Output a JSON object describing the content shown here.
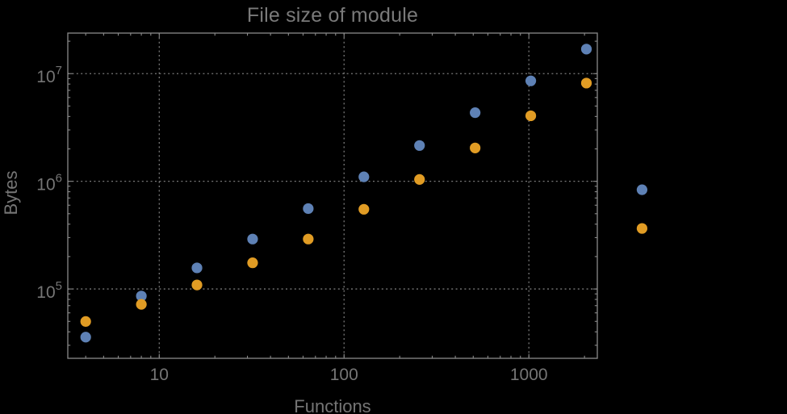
{
  "figure": {
    "background_color": "#000000",
    "title_color": "#7a7a7a",
    "text_color": "#757575",
    "frame_color": "#8a8a8a",
    "grid_color": "#868686"
  },
  "chart_data": {
    "type": "scatter",
    "title": "File size of module",
    "xlabel": "Functions",
    "ylabel": "Bytes",
    "x_scale": "log",
    "y_scale": "log",
    "grid": "dotted lines at decade ticks, frame on all four sides with mirrored inward ticks",
    "legend": "none",
    "plot_range_clipping": false,
    "x_range": [
      3.2,
      2346
    ],
    "y_range": [
      22700,
      23800000
    ],
    "x_ticks": [
      10,
      100,
      1000
    ],
    "x_tick_labels": [
      "10",
      "100",
      "1000"
    ],
    "y_ticks": [
      100000,
      1000000,
      10000000
    ],
    "y_tick_labels": [
      {
        "base": "10",
        "exp": "5"
      },
      {
        "base": "10",
        "exp": "6"
      },
      {
        "base": "10",
        "exp": "7"
      }
    ],
    "x": [
      4,
      8,
      16,
      32,
      64,
      128,
      256,
      512,
      1024,
      2048,
      4096
    ],
    "series": [
      {
        "name": "blue",
        "color": "#5E81B5",
        "values": [
          35700,
          86000,
          157000,
          291000,
          558000,
          1100000,
          2150000,
          4340000,
          8570000,
          16900000,
          835000
        ]
      },
      {
        "name": "orange",
        "color": "#E19C24",
        "values": [
          49900,
          72000,
          109000,
          175000,
          291000,
          550000,
          1040000,
          2040000,
          4060000,
          8170000,
          365000
        ]
      }
    ],
    "marker": {
      "shape": "circle",
      "radius_px": 6.6
    }
  }
}
